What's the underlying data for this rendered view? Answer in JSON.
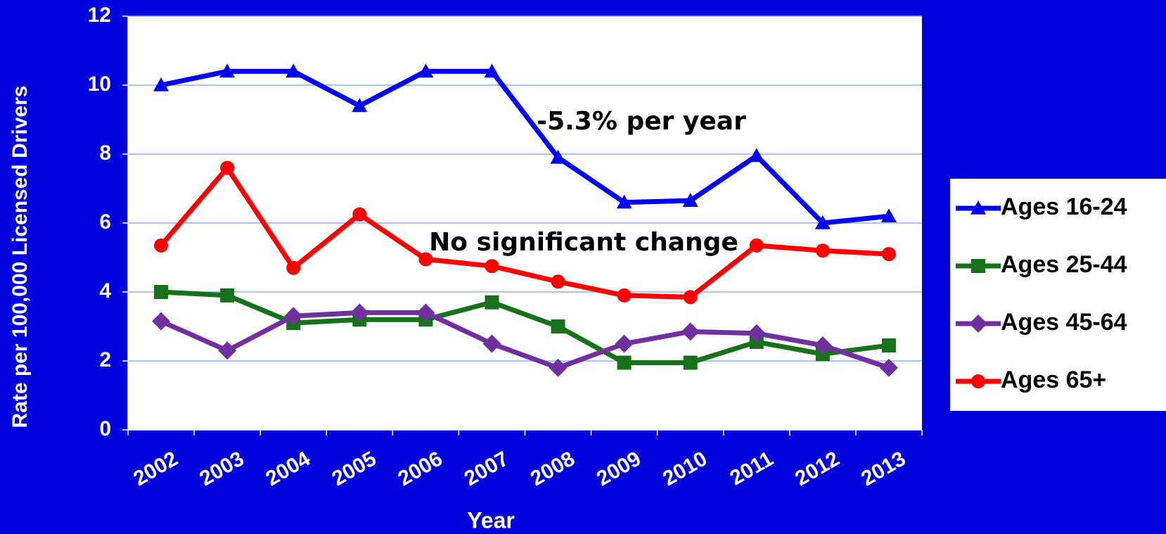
{
  "chart_data": {
    "type": "line",
    "x_label": "Year",
    "y_label": "Rate per 100,000 Licensed Drivers",
    "categories": [
      "2002",
      "2003",
      "2004",
      "2005",
      "2006",
      "2007",
      "2008",
      "2009",
      "2010",
      "2011",
      "2012",
      "2013"
    ],
    "series": [
      {
        "name": "Ages 16-24",
        "color": "#0000ff",
        "marker": "triangle",
        "values": [
          10.0,
          10.4,
          10.4,
          9.4,
          10.4,
          10.4,
          7.9,
          6.6,
          6.65,
          7.95,
          6.0,
          6.2
        ]
      },
      {
        "name": "Ages 25-44",
        "color": "#17701a",
        "marker": "square",
        "values": [
          4.0,
          3.9,
          3.1,
          3.2,
          3.2,
          3.7,
          3.0,
          1.95,
          1.95,
          2.55,
          2.2,
          2.45
        ]
      },
      {
        "name": "Ages 45-64",
        "color": "#7030a0",
        "marker": "diamond",
        "values": [
          3.15,
          2.3,
          3.3,
          3.4,
          3.4,
          2.5,
          1.8,
          2.5,
          2.85,
          2.8,
          2.45,
          1.8
        ]
      },
      {
        "name": "Ages 65+",
        "color": "#ff0000",
        "marker": "circle",
        "values": [
          5.35,
          7.6,
          4.7,
          6.25,
          4.95,
          4.75,
          4.3,
          3.9,
          3.85,
          5.35,
          5.2,
          5.1
        ]
      }
    ],
    "annotations": [
      "-5.3% per year",
      "No significant change"
    ],
    "ylim": [
      0,
      12
    ],
    "yticks": [
      0,
      2,
      4,
      6,
      8,
      10,
      12
    ],
    "grid": true,
    "legend": "right"
  }
}
